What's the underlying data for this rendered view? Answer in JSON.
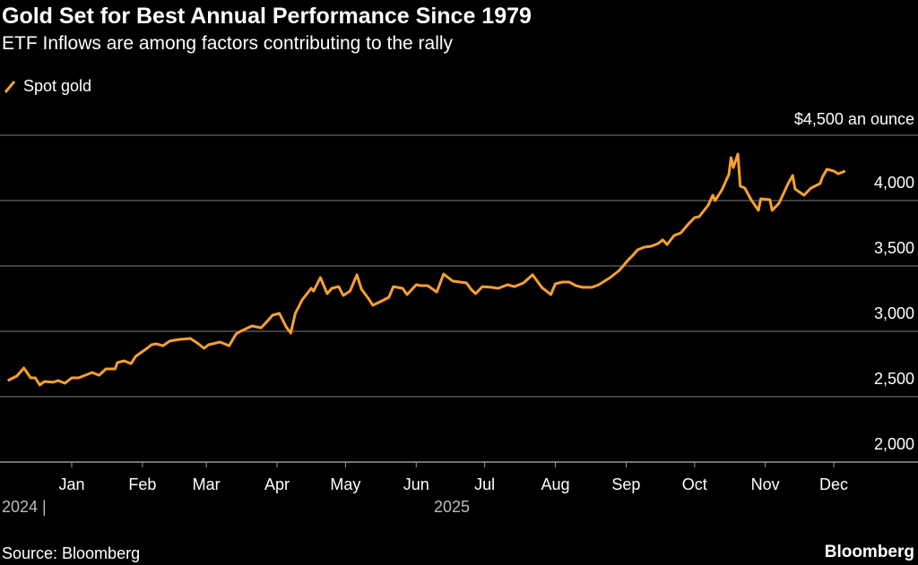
{
  "chart_data": {
    "type": "line",
    "title": "Gold Set for Best Annual Performance Since 1979",
    "subtitle": "ETF Inflows are among factors contributing to the rally",
    "unit_label": "$4,500 an ounce",
    "xlabel": "",
    "ylabel": "",
    "x_units": "days since 2025-01-01",
    "ylim": [
      2000,
      4500
    ],
    "yticks": [
      2500,
      3000,
      3500,
      4000
    ],
    "ytick_labels": [
      "2,000",
      "2,500",
      "3,000",
      "3,500",
      "4,000"
    ],
    "ytick_values": [
      2000,
      2500,
      3000,
      3500,
      4000
    ],
    "xtick_labels": [
      "Jan",
      "Feb",
      "Mar",
      "Apr",
      "May",
      "Jun",
      "Jul",
      "Aug",
      "Sep",
      "Oct",
      "Nov",
      "Dec"
    ],
    "xtick_days": [
      0,
      31,
      59,
      90,
      120,
      151,
      181,
      212,
      243,
      273,
      304,
      334
    ],
    "year_labels": [
      "2024 |",
      "2025"
    ],
    "grid": true,
    "legend": "top-left",
    "series": [
      {
        "name": "Spot gold",
        "color": "#f5a030",
        "x": [
          -28,
          -24,
          -21,
          -18,
          -16,
          -14,
          -12,
          -8,
          -6,
          -3,
          0,
          3,
          9,
          12,
          15,
          19,
          20,
          23,
          26,
          28,
          33,
          35,
          37,
          40,
          43,
          47,
          52,
          55,
          58,
          60,
          65,
          69,
          72,
          74,
          79,
          83,
          86,
          88,
          91,
          94,
          96,
          98,
          101,
          105,
          106,
          109,
          112,
          114,
          117,
          119,
          122,
          125,
          127,
          130,
          132,
          136,
          139,
          141,
          145,
          147,
          151,
          153,
          156,
          160,
          163,
          167,
          173,
          175,
          177,
          180,
          184,
          187,
          191,
          194,
          198,
          202,
          206,
          210,
          212,
          215,
          218,
          221,
          224,
          228,
          231,
          236,
          240,
          244,
          246,
          248,
          251,
          254,
          257,
          259,
          261,
          264,
          267,
          270,
          273,
          275,
          279,
          281,
          282,
          285,
          288,
          289,
          290,
          292,
          293,
          295,
          298,
          301,
          302,
          306,
          307,
          310,
          314,
          316,
          317,
          321,
          324,
          328,
          329,
          331,
          334,
          336,
          339
        ],
        "y": [
          2623,
          2658,
          2719,
          2644,
          2644,
          2589,
          2616,
          2610,
          2623,
          2603,
          2644,
          2644,
          2685,
          2664,
          2712,
          2712,
          2760,
          2774,
          2753,
          2808,
          2870,
          2897,
          2904,
          2890,
          2925,
          2938,
          2945,
          2911,
          2870,
          2897,
          2918,
          2890,
          2979,
          3000,
          3041,
          3027,
          3082,
          3123,
          3137,
          3034,
          2986,
          3137,
          3240,
          3329,
          3308,
          3411,
          3288,
          3329,
          3342,
          3274,
          3308,
          3432,
          3322,
          3253,
          3199,
          3233,
          3260,
          3342,
          3329,
          3281,
          3356,
          3349,
          3349,
          3301,
          3438,
          3384,
          3370,
          3322,
          3288,
          3342,
          3336,
          3329,
          3356,
          3342,
          3370,
          3432,
          3336,
          3281,
          3363,
          3377,
          3377,
          3349,
          3336,
          3336,
          3356,
          3411,
          3466,
          3548,
          3582,
          3623,
          3644,
          3651,
          3671,
          3699,
          3664,
          3733,
          3753,
          3815,
          3870,
          3877,
          3966,
          4041,
          4000,
          4082,
          4199,
          4329,
          4253,
          4356,
          4110,
          4096,
          4000,
          3925,
          4014,
          4007,
          3925,
          3979,
          4130,
          4192,
          4089,
          4041,
          4096,
          4130,
          4178,
          4240,
          4226,
          4205,
          4226
        ]
      }
    ]
  },
  "footer": {
    "source": "Source: Bloomberg",
    "brand": "Bloomberg"
  }
}
